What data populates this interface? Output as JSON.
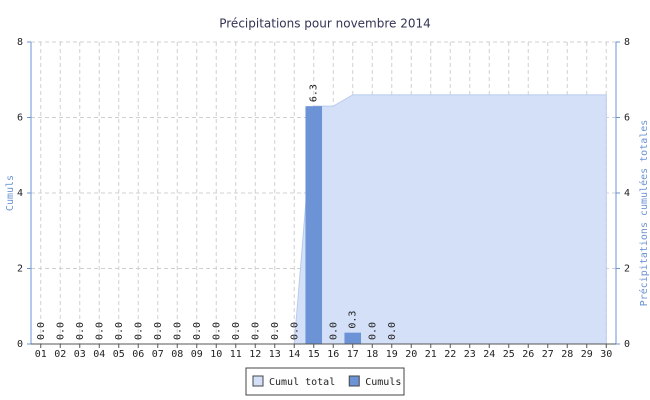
{
  "chart_data": {
    "type": "bar-area",
    "title": "Précipitations pour novembre 2014",
    "y_label": "Cumuls",
    "y2_label": "Précipitations cumulées totales",
    "categories": [
      "01",
      "02",
      "03",
      "04",
      "05",
      "06",
      "07",
      "08",
      "09",
      "10",
      "11",
      "12",
      "13",
      "14",
      "15",
      "16",
      "17",
      "18",
      "19",
      "20",
      "21",
      "22",
      "23",
      "24",
      "25",
      "26",
      "27",
      "28",
      "29",
      "30"
    ],
    "series": [
      {
        "name": "Cumul total",
        "type": "area",
        "axis": "y2",
        "color": "#d3e0f8",
        "values": [
          0,
          0,
          0,
          0,
          0,
          0,
          0,
          0,
          0,
          0,
          0,
          0,
          0,
          0,
          6.3,
          6.3,
          6.6,
          6.6,
          6.6,
          6.6,
          6.6,
          6.6,
          6.6,
          6.6,
          6.6,
          6.6,
          6.6,
          6.6,
          6.6,
          6.6
        ]
      },
      {
        "name": "Cumuls",
        "type": "bar",
        "color": "#6b93d6",
        "values": [
          0,
          0,
          0,
          0,
          0,
          0,
          0,
          0,
          0,
          0,
          0,
          0,
          0,
          0,
          6.3,
          0,
          0.3,
          0,
          0,
          null,
          null,
          null,
          null,
          null,
          null,
          null,
          null,
          null,
          null,
          null
        ],
        "value_labels": [
          "0.0",
          "0.0",
          "0.0",
          "0.0",
          "0.0",
          "0.0",
          "0.0",
          "0.0",
          "0.0",
          "0.0",
          "0.0",
          "0.0",
          "0.0",
          "0.0",
          "6.3",
          "0.0",
          "0.3",
          "0.0",
          "0.0",
          null,
          null,
          null,
          null,
          null,
          null,
          null,
          null,
          null,
          null,
          null
        ]
      }
    ],
    "ylim": [
      0,
      8
    ],
    "yticks": [
      0,
      2,
      4,
      6,
      8
    ],
    "y2lim": [
      0,
      8
    ],
    "y2ticks": [
      0,
      2,
      4,
      6,
      8
    ],
    "grid": true,
    "legend": "bottom"
  }
}
